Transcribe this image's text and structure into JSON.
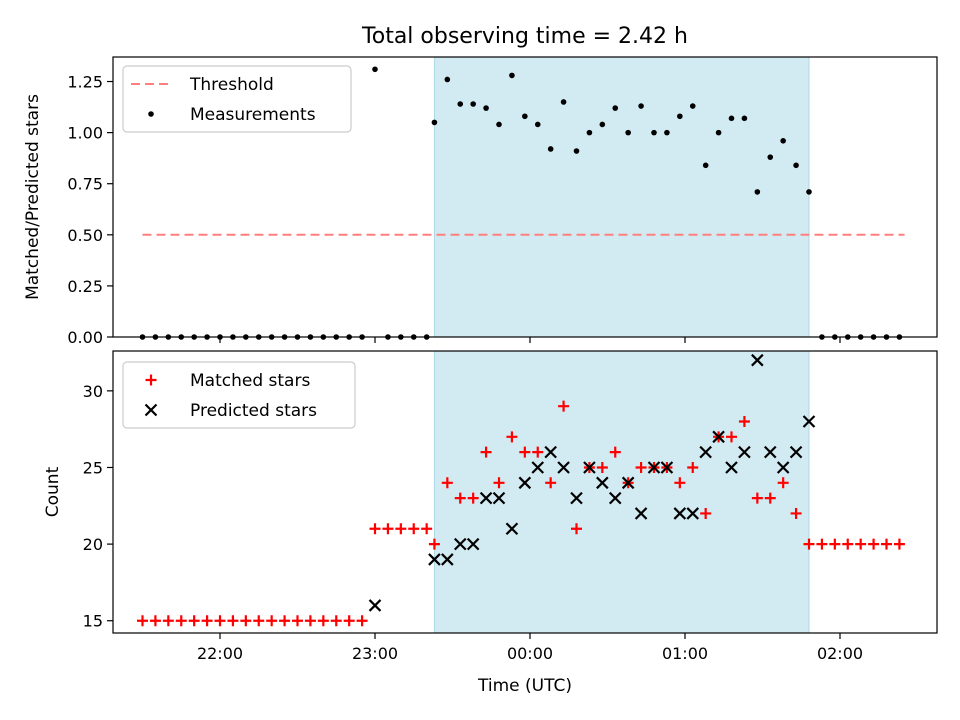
{
  "title": "Total observing time = 2.42 h",
  "xlabel": "Time (UTC)",
  "x_ticks": [
    "22:00",
    "23:00",
    "00:00",
    "01:00",
    "02:00"
  ],
  "colors": {
    "shade": "#add8e6",
    "threshold": "#ff7f7f",
    "matched": "#ff0000",
    "predicted": "#000000",
    "measure": "#000000"
  },
  "chart_data": [
    {
      "type": "scatter",
      "ylabel": "Matched/Predicted stars",
      "ylim": [
        0,
        1.37
      ],
      "y_ticks": [
        "0.00",
        "0.25",
        "0.50",
        "0.75",
        "1.00",
        "1.25"
      ],
      "legend": {
        "position": "top-left",
        "entries": [
          "Threshold",
          "Measurements"
        ]
      },
      "threshold": {
        "name": "Threshold",
        "value": 0.5,
        "x_start": "21:30",
        "x_end": "02:25"
      },
      "shaded_region": {
        "x_start": "23:23",
        "x_end": "01:48"
      },
      "series": [
        {
          "name": "Measurements",
          "x": [
            "21:30",
            "21:35",
            "21:40",
            "21:45",
            "21:50",
            "21:55",
            "22:00",
            "22:05",
            "22:10",
            "22:15",
            "22:20",
            "22:25",
            "22:30",
            "22:35",
            "22:40",
            "22:45",
            "22:50",
            "22:55",
            "23:00",
            "23:05",
            "23:10",
            "23:15",
            "23:20",
            "23:23",
            "23:28",
            "23:33",
            "23:38",
            "23:43",
            "23:48",
            "23:53",
            "23:58",
            "00:03",
            "00:08",
            "00:13",
            "00:18",
            "00:23",
            "00:28",
            "00:33",
            "00:38",
            "00:43",
            "00:48",
            "00:53",
            "00:58",
            "01:03",
            "01:08",
            "01:13",
            "01:18",
            "01:23",
            "01:28",
            "01:33",
            "01:38",
            "01:43",
            "01:48",
            "01:53",
            "01:58",
            "02:03",
            "02:08",
            "02:13",
            "02:18",
            "02:23"
          ],
          "y": [
            0,
            0,
            0,
            0,
            0,
            0,
            0,
            0,
            0,
            0,
            0,
            0,
            0,
            0,
            0,
            0,
            0,
            0,
            1.31,
            0,
            0,
            0,
            0,
            1.05,
            1.26,
            1.14,
            1.14,
            1.12,
            1.04,
            1.28,
            1.08,
            1.04,
            0.92,
            1.15,
            0.91,
            1.0,
            1.04,
            1.12,
            1.0,
            1.13,
            1.0,
            1.0,
            1.08,
            1.13,
            0.84,
            1.0,
            1.07,
            1.07,
            0.71,
            0.88,
            0.96,
            0.84,
            0.71,
            0,
            0,
            0,
            0,
            0,
            0,
            0
          ]
        }
      ]
    },
    {
      "type": "scatter",
      "ylabel": "Count",
      "ylim": [
        14.2,
        32.6
      ],
      "y_ticks": [
        "15",
        "20",
        "25",
        "30"
      ],
      "legend": {
        "position": "top-left",
        "entries": [
          "Matched stars",
          "Predicted stars"
        ]
      },
      "shaded_region": {
        "x_start": "23:23",
        "x_end": "01:48"
      },
      "series": [
        {
          "name": "Matched stars",
          "x": [
            "21:30",
            "21:35",
            "21:40",
            "21:45",
            "21:50",
            "21:55",
            "22:00",
            "22:05",
            "22:10",
            "22:15",
            "22:20",
            "22:25",
            "22:30",
            "22:35",
            "22:40",
            "22:45",
            "22:50",
            "22:55",
            "23:00",
            "23:05",
            "23:10",
            "23:15",
            "23:20",
            "23:23",
            "23:28",
            "23:33",
            "23:38",
            "23:43",
            "23:48",
            "23:53",
            "23:58",
            "00:03",
            "00:08",
            "00:13",
            "00:18",
            "00:23",
            "00:28",
            "00:33",
            "00:38",
            "00:43",
            "00:48",
            "00:53",
            "00:58",
            "01:03",
            "01:08",
            "01:13",
            "01:18",
            "01:23",
            "01:28",
            "01:33",
            "01:38",
            "01:43",
            "01:48",
            "01:53",
            "01:58",
            "02:03",
            "02:08",
            "02:13",
            "02:18",
            "02:23"
          ],
          "y": [
            15,
            15,
            15,
            15,
            15,
            15,
            15,
            15,
            15,
            15,
            15,
            15,
            15,
            15,
            15,
            15,
            15,
            15,
            21,
            21,
            21,
            21,
            21,
            20,
            24,
            23,
            23,
            26,
            24,
            27,
            26,
            26,
            24,
            29,
            21,
            25,
            25,
            26,
            24,
            25,
            25,
            25,
            24,
            25,
            22,
            27,
            27,
            28,
            23,
            23,
            24,
            22,
            20,
            20,
            20,
            20,
            20,
            20,
            20,
            20
          ]
        },
        {
          "name": "Predicted stars",
          "x": [
            "23:00",
            "23:23",
            "23:28",
            "23:33",
            "23:38",
            "23:43",
            "23:48",
            "23:53",
            "23:58",
            "00:03",
            "00:08",
            "00:13",
            "00:18",
            "00:23",
            "00:28",
            "00:33",
            "00:38",
            "00:43",
            "00:48",
            "00:53",
            "00:58",
            "01:03",
            "01:08",
            "01:13",
            "01:18",
            "01:23",
            "01:28",
            "01:33",
            "01:38",
            "01:43",
            "01:48"
          ],
          "y": [
            16,
            19,
            19,
            20,
            20,
            23,
            23,
            21,
            24,
            25,
            26,
            25,
            23,
            25,
            24,
            23,
            24,
            22,
            25,
            25,
            22,
            22,
            26,
            27,
            25,
            26,
            32,
            26,
            25,
            26,
            28
          ]
        }
      ]
    }
  ]
}
